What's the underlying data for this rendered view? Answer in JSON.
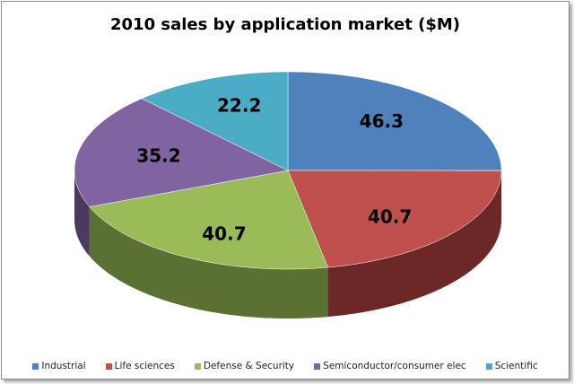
{
  "chart_data": {
    "type": "pie",
    "title": "2010 sales by application market ($M)",
    "three_d": true,
    "legend_position": "bottom",
    "categories": [
      "Industrial",
      "Life sciences",
      "Defense & Security",
      "Semiconductor/consumer elec",
      "Scientific"
    ],
    "values": [
      46.3,
      40.7,
      40.7,
      35.2,
      22.2
    ],
    "data_labels": [
      "46.3",
      "40.7",
      "40.7",
      "35.2",
      "22.2"
    ],
    "colors": [
      "#4F81BD",
      "#C0504D",
      "#9BBB59",
      "#8064A2",
      "#4BACC6"
    ],
    "side_colors": [
      "#2c4a70",
      "#6b2826",
      "#5b7133",
      "#4a3a60",
      "#2a6878"
    ]
  }
}
